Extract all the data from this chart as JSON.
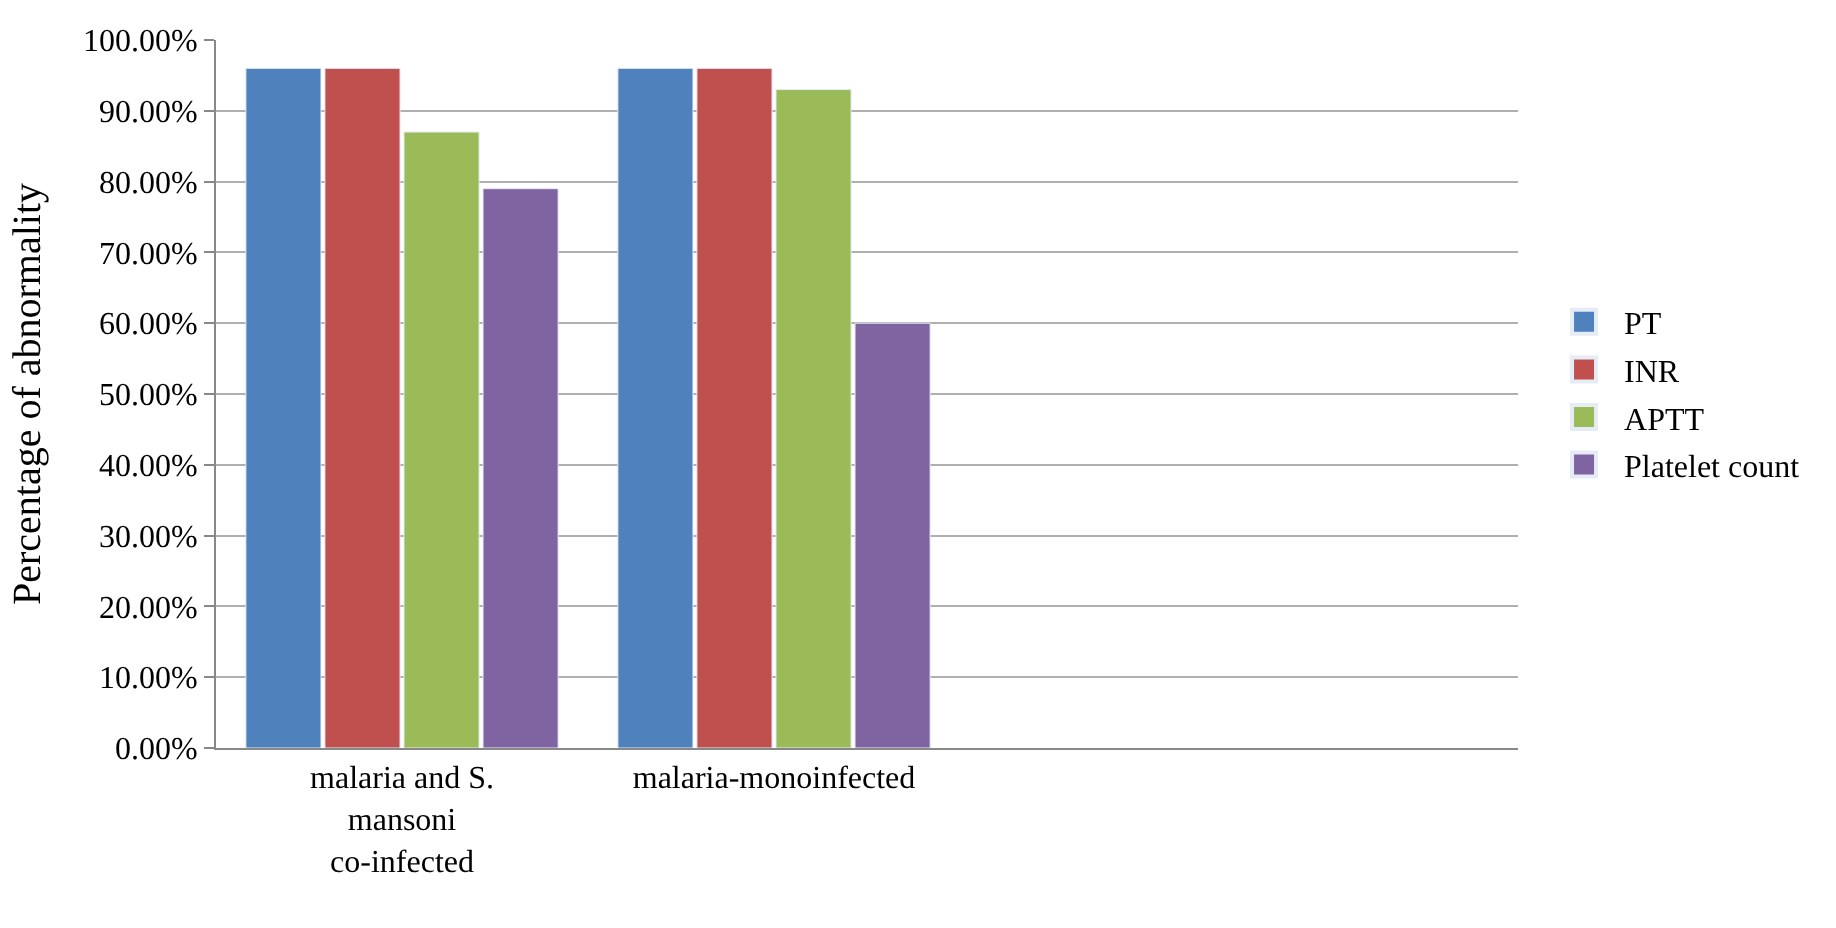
{
  "chart_data": {
    "type": "bar",
    "ylabel": "Percentage of abnormality",
    "categories": [
      "malaria and S. mansoni co-infected",
      "malaria-monoinfected"
    ],
    "series": [
      {
        "name": "PT",
        "color": "#4f81bd",
        "values": [
          96,
          96
        ]
      },
      {
        "name": "INR",
        "color": "#c0504d",
        "values": [
          96,
          96
        ]
      },
      {
        "name": "APTT",
        "color": "#9bbb59",
        "values": [
          87,
          93
        ]
      },
      {
        "name": "Platelet count",
        "color": "#8064a2",
        "values": [
          79,
          60
        ]
      }
    ],
    "ylim": [
      0,
      100
    ],
    "yticks": [
      {
        "value": 0,
        "label": "0.00%"
      },
      {
        "value": 10,
        "label": "10.00%"
      },
      {
        "value": 20,
        "label": "20.00%"
      },
      {
        "value": 30,
        "label": "30.00%"
      },
      {
        "value": 40,
        "label": "40.00%"
      },
      {
        "value": 50,
        "label": "50.00%"
      },
      {
        "value": 60,
        "label": "60.00%"
      },
      {
        "value": 70,
        "label": "70.00%"
      },
      {
        "value": 80,
        "label": "80.00%"
      },
      {
        "value": 90,
        "label": "90.00%"
      },
      {
        "value": 100,
        "label": "100.00%"
      }
    ],
    "grid": "y",
    "legend": "right"
  }
}
